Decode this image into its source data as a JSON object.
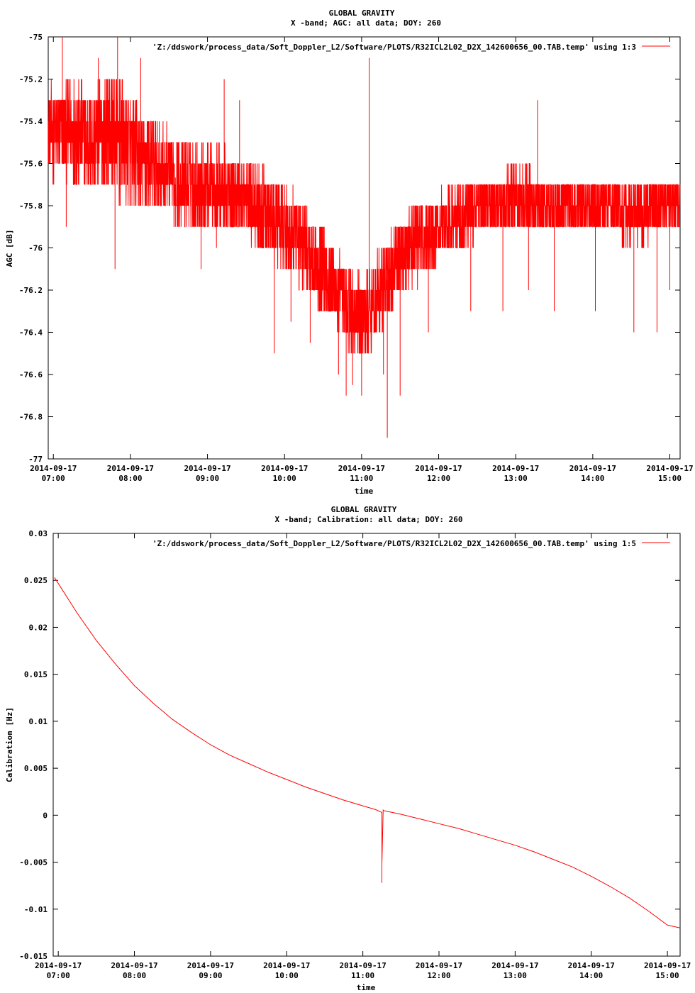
{
  "chart_data": [
    {
      "type": "line",
      "title": "GLOBAL GRAVITY",
      "subtitle": "X -band; AGC: all data; DOY: 260",
      "xlabel": "time",
      "ylabel": "AGC [dB]",
      "legend": "'Z:/ddswork/process_data/Soft_Doppler_L2/Software/PLOTS/R32ICL2L02_D2X_142600656_00.TAB.temp' using 1:3",
      "legend_position": "top-right",
      "color": "#ff0000",
      "xlim": [
        "2014-09-17 06:56",
        "2014-09-17 15:08"
      ],
      "ylim": [
        -77,
        -75
      ],
      "y_ticks": [
        -75,
        -75.2,
        -75.4,
        -75.6,
        -75.8,
        -76,
        -76.2,
        -76.4,
        -76.6,
        -76.8,
        -77
      ],
      "y_tick_labels": [
        "-75",
        "-75.2",
        "-75.4",
        "-75.6",
        "-75.8",
        "-76",
        "-76.2",
        "-76.4",
        "-76.6",
        "-76.8",
        "-77"
      ],
      "x_ticks": [
        "07:00",
        "08:00",
        "09:00",
        "10:00",
        "11:00",
        "12:00",
        "13:00",
        "14:00",
        "15:00"
      ],
      "x_tick_dates": [
        "2014-09-17",
        "2014-09-17",
        "2014-09-17",
        "2014-09-17",
        "2014-09-17",
        "2014-09-17",
        "2014-09-17",
        "2014-09-17",
        "2014-09-17"
      ],
      "grid": false,
      "series": [
        {
          "x": [
            "06:56",
            "07:15",
            "07:30",
            "07:45",
            "08:00",
            "08:15",
            "08:30",
            "08:45",
            "09:00",
            "09:15",
            "09:30",
            "09:45",
            "10:00",
            "10:15",
            "10:30",
            "10:45",
            "11:00",
            "11:15",
            "11:30",
            "11:45",
            "12:00",
            "12:15",
            "12:30",
            "12:45",
            "13:00",
            "13:15",
            "13:30",
            "13:45",
            "14:00",
            "14:15",
            "14:30",
            "14:45",
            "15:00",
            "15:08"
          ],
          "values": [
            -75.45,
            -75.45,
            -75.5,
            -75.45,
            -75.55,
            -75.6,
            -75.65,
            -75.7,
            -75.7,
            -75.75,
            -75.75,
            -75.85,
            -75.9,
            -76.0,
            -76.1,
            -76.25,
            -76.35,
            -76.2,
            -76.05,
            -75.95,
            -75.9,
            -75.85,
            -75.8,
            -75.8,
            -75.75,
            -75.8,
            -75.8,
            -75.8,
            -75.8,
            -75.8,
            -75.85,
            -75.8,
            -75.8,
            -75.8
          ],
          "spread": [
            0.2,
            0.25,
            0.25,
            0.3,
            0.25,
            0.25,
            0.2,
            0.2,
            0.2,
            0.2,
            0.2,
            0.2,
            0.2,
            0.2,
            0.2,
            0.2,
            0.2,
            0.2,
            0.2,
            0.2,
            0.15,
            0.15,
            0.15,
            0.15,
            0.15,
            0.15,
            0.15,
            0.15,
            0.15,
            0.15,
            0.15,
            0.15,
            0.15,
            0.15
          ],
          "spikes": [
            {
              "x": "07:07",
              "value": -75.0
            },
            {
              "x": "07:10",
              "value": -75.9
            },
            {
              "x": "07:35",
              "value": -75.1
            },
            {
              "x": "07:48",
              "value": -76.1
            },
            {
              "x": "07:50",
              "value": -75.0
            },
            {
              "x": "07:52",
              "value": -75.8
            },
            {
              "x": "08:08",
              "value": -75.1
            },
            {
              "x": "08:35",
              "value": -75.9
            },
            {
              "x": "08:55",
              "value": -76.1
            },
            {
              "x": "09:07",
              "value": -76.0
            },
            {
              "x": "09:13",
              "value": -75.2
            },
            {
              "x": "09:25",
              "value": -75.3
            },
            {
              "x": "09:42",
              "value": -76.0
            },
            {
              "x": "09:52",
              "value": -76.5
            },
            {
              "x": "10:05",
              "value": -76.35
            },
            {
              "x": "10:20",
              "value": -76.45
            },
            {
              "x": "10:42",
              "value": -76.6
            },
            {
              "x": "10:48",
              "value": -76.7
            },
            {
              "x": "10:53",
              "value": -76.65
            },
            {
              "x": "11:00",
              "value": -76.7
            },
            {
              "x": "11:06",
              "value": -75.1
            },
            {
              "x": "11:17",
              "value": -76.6
            },
            {
              "x": "11:20",
              "value": -76.9
            },
            {
              "x": "11:30",
              "value": -76.7
            },
            {
              "x": "11:52",
              "value": -76.4
            },
            {
              "x": "12:25",
              "value": -76.3
            },
            {
              "x": "12:50",
              "value": -76.3
            },
            {
              "x": "13:10",
              "value": -76.2
            },
            {
              "x": "13:17",
              "value": -75.3
            },
            {
              "x": "13:30",
              "value": -76.3
            },
            {
              "x": "14:02",
              "value": -76.3
            },
            {
              "x": "14:32",
              "value": -76.4
            },
            {
              "x": "14:50",
              "value": -76.4
            },
            {
              "x": "15:00",
              "value": -76.2
            }
          ]
        }
      ]
    },
    {
      "type": "line",
      "title": "GLOBAL GRAVITY",
      "subtitle": "X -band; Calibration: all data; DOY: 260",
      "xlabel": "time",
      "ylabel": "Calibration [Hz]",
      "legend": "'Z:/ddswork/process_data/Soft_Doppler_L2/Software/PLOTS/R32ICL2L02_D2X_142600656_00.TAB.temp' using 1:5",
      "legend_position": "top-right",
      "color": "#ff0000",
      "xlim": [
        "2014-09-17 06:56",
        "2014-09-17 15:10"
      ],
      "ylim": [
        -0.015,
        0.03
      ],
      "y_ticks": [
        0.03,
        0.025,
        0.02,
        0.015,
        0.01,
        0.005,
        0,
        -0.005,
        -0.01,
        -0.015
      ],
      "y_tick_labels": [
        "0.03",
        "0.025",
        "0.02",
        "0.015",
        "0.01",
        "0.005",
        "0",
        "-0.005",
        "-0.01",
        "-0.015"
      ],
      "x_ticks": [
        "07:00",
        "08:00",
        "09:00",
        "10:00",
        "11:00",
        "12:00",
        "13:00",
        "14:00",
        "15:00"
      ],
      "x_tick_dates": [
        "2014-09-17",
        "2014-09-17",
        "2014-09-17",
        "2014-09-17",
        "2014-09-17",
        "2014-09-17",
        "2014-09-17",
        "2014-09-17",
        "2014-09-17"
      ],
      "grid": false,
      "series": [
        {
          "x": [
            "06:57",
            "07:15",
            "07:30",
            "07:45",
            "08:00",
            "08:15",
            "08:30",
            "08:45",
            "09:00",
            "09:15",
            "09:30",
            "09:45",
            "10:00",
            "10:15",
            "10:30",
            "10:45",
            "11:00",
            "11:10",
            "11:15",
            "11:15",
            "11:15",
            "11:16",
            "11:16",
            "11:30",
            "11:45",
            "12:00",
            "12:15",
            "12:30",
            "12:45",
            "13:00",
            "13:15",
            "13:30",
            "13:45",
            "14:00",
            "14:15",
            "14:30",
            "14:45",
            "15:00",
            "15:10"
          ],
          "values": [
            0.0253,
            0.0215,
            0.0186,
            0.0161,
            0.0138,
            0.0119,
            0.0102,
            0.0088,
            0.0075,
            0.0064,
            0.0055,
            0.0046,
            0.0038,
            0.003,
            0.0023,
            0.0016,
            0.001,
            0.0006,
            0.0003,
            -0.0072,
            -0.0052,
            0.0006,
            0.0005,
            0.0001,
            -0.0004,
            -0.0009,
            -0.0014,
            -0.002,
            -0.0026,
            -0.0032,
            -0.0039,
            -0.0047,
            -0.0055,
            -0.0065,
            -0.0076,
            -0.0088,
            -0.0102,
            -0.0117,
            -0.012
          ]
        }
      ]
    }
  ]
}
